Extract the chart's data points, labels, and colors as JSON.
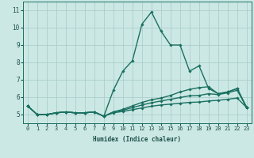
{
  "xlabel": "Humidex (Indice chaleur)",
  "x": [
    0,
    1,
    2,
    3,
    4,
    5,
    6,
    7,
    8,
    9,
    10,
    11,
    12,
    13,
    14,
    15,
    16,
    17,
    18,
    19,
    20,
    21,
    22,
    23
  ],
  "lines": [
    {
      "y": [
        5.5,
        5.0,
        5.0,
        5.1,
        5.15,
        5.1,
        5.1,
        5.15,
        4.9,
        6.4,
        7.5,
        8.1,
        10.2,
        10.9,
        9.8,
        9.0,
        9.0,
        7.5,
        7.8,
        6.5,
        6.2,
        6.3,
        6.5,
        5.4
      ]
    },
    {
      "y": [
        5.5,
        5.0,
        5.0,
        5.1,
        5.15,
        5.1,
        5.1,
        5.15,
        4.9,
        5.15,
        5.3,
        5.5,
        5.7,
        5.85,
        5.95,
        6.1,
        6.3,
        6.45,
        6.55,
        6.6,
        6.2,
        6.3,
        6.5,
        5.4
      ]
    },
    {
      "y": [
        5.5,
        5.0,
        5.0,
        5.1,
        5.15,
        5.1,
        5.1,
        5.15,
        4.9,
        5.15,
        5.25,
        5.4,
        5.55,
        5.68,
        5.78,
        5.88,
        5.98,
        6.08,
        6.1,
        6.2,
        6.15,
        6.25,
        6.4,
        5.4
      ]
    },
    {
      "y": [
        5.5,
        5.0,
        5.0,
        5.1,
        5.15,
        5.1,
        5.1,
        5.15,
        4.9,
        5.1,
        5.18,
        5.28,
        5.38,
        5.48,
        5.55,
        5.6,
        5.65,
        5.7,
        5.72,
        5.78,
        5.82,
        5.88,
        5.95,
        5.4
      ]
    }
  ],
  "marker": "D",
  "marker_size": 1.8,
  "ylim": [
    4.5,
    11.5
  ],
  "xlim": [
    -0.5,
    23.5
  ],
  "yticks": [
    5,
    6,
    7,
    8,
    9,
    10,
    11
  ],
  "xticks": [
    0,
    1,
    2,
    3,
    4,
    5,
    6,
    7,
    8,
    9,
    10,
    11,
    12,
    13,
    14,
    15,
    16,
    17,
    18,
    19,
    20,
    21,
    22,
    23
  ],
  "bg_color": "#cce8e5",
  "grid_color": "#aacfcc",
  "line_color": "#1a7060",
  "text_color": "#1a5048",
  "xlabel_fontsize": 5.5,
  "tick_fontsize": 5.0,
  "ytick_fontsize": 5.5,
  "lw": 1.0
}
